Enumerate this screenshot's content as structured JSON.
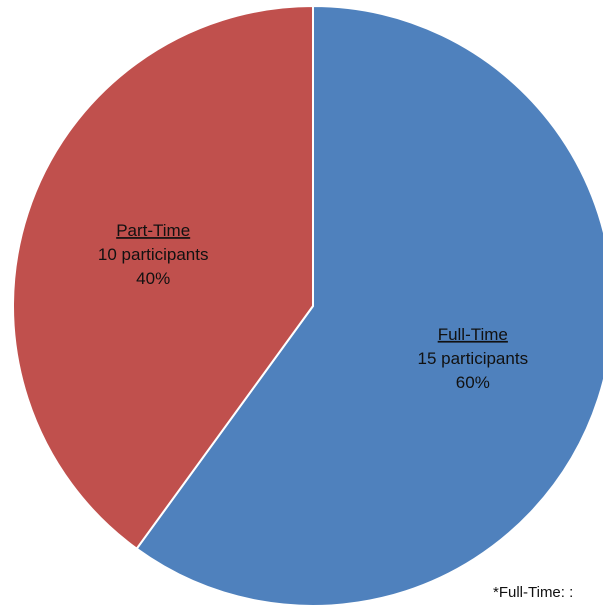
{
  "chart_data": {
    "type": "pie",
    "title": "",
    "start_angle_deg": 0,
    "direction": "clockwise",
    "slices": [
      {
        "name": "Full-Time",
        "count_label": "15 participants",
        "percent_label": "60%",
        "value": 15,
        "percent": 60,
        "color": "#4F81BD"
      },
      {
        "name": "Part-Time",
        "count_label": "10 participants",
        "percent_label": "40%",
        "value": 10,
        "percent": 40,
        "color": "#C0504D"
      }
    ],
    "footnote": "*Full-Time: :"
  }
}
